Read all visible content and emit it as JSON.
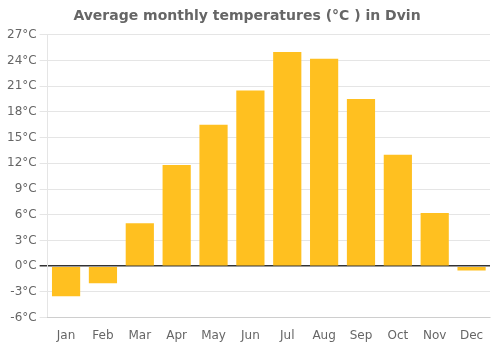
{
  "chart_data": {
    "type": "bar",
    "title": "Average monthly temperatures (°C ) in Dvin",
    "categories": [
      "Jan",
      "Feb",
      "Mar",
      "Apr",
      "May",
      "Jun",
      "Jul",
      "Aug",
      "Sep",
      "Oct",
      "Nov",
      "Dec"
    ],
    "values": [
      -3.5,
      -2.0,
      5.0,
      11.8,
      16.5,
      20.5,
      25.0,
      24.2,
      19.5,
      13.0,
      6.2,
      -0.5
    ],
    "color": "#FFC020",
    "ylim": [
      -6,
      27
    ],
    "yticks": [
      {
        "value": -6,
        "label": "-6°C"
      },
      {
        "value": -3,
        "label": "-3°C"
      },
      {
        "value": 0,
        "label": "0°C"
      },
      {
        "value": 3,
        "label": "3°C"
      },
      {
        "value": 6,
        "label": "6°C"
      },
      {
        "value": 9,
        "label": "9°C"
      },
      {
        "value": 12,
        "label": "12°C"
      },
      {
        "value": 15,
        "label": "15°C"
      },
      {
        "value": 18,
        "label": "18°C"
      },
      {
        "value": 21,
        "label": "21°C"
      },
      {
        "value": 24,
        "label": "24°C"
      },
      {
        "value": 27,
        "label": "27°C"
      }
    ],
    "grid": true
  }
}
